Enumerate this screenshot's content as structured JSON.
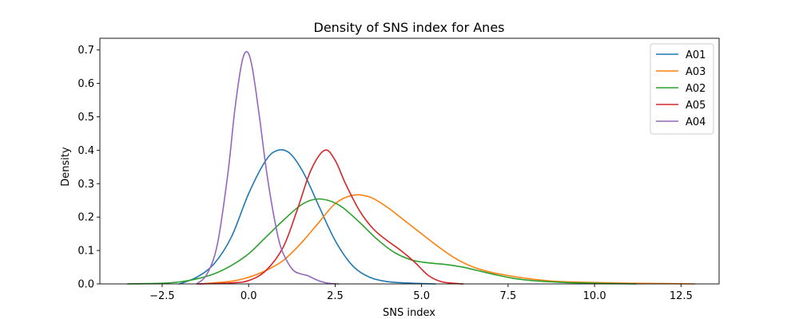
{
  "chart_data": {
    "type": "line",
    "title": "Density of SNS index for Anes",
    "xlabel": "SNS index",
    "ylabel": "Density",
    "xlim": [
      -4.3,
      13.6
    ],
    "ylim": [
      0,
      0.735
    ],
    "xticks": [
      -2.5,
      0.0,
      2.5,
      5.0,
      7.5,
      10.0,
      12.5
    ],
    "xtick_labels": [
      "−2.5",
      "0.0",
      "2.5",
      "5.0",
      "7.5",
      "10.0",
      "12.5"
    ],
    "yticks": [
      0.0,
      0.1,
      0.2,
      0.3,
      0.4,
      0.5,
      0.6,
      0.7
    ],
    "ytick_labels": [
      "0.0",
      "0.1",
      "0.2",
      "0.3",
      "0.4",
      "0.5",
      "0.6",
      "0.7"
    ],
    "grid": false,
    "legend_position": "top-right",
    "series": [
      {
        "name": "A01",
        "color": "#1f77b4",
        "x": [
          -2.0,
          -1.5,
          -1.0,
          -0.5,
          0.0,
          0.5,
          0.85,
          1.2,
          1.6,
          2.0,
          2.5,
          3.0,
          3.5,
          4.0,
          4.5,
          5.0,
          5.4
        ],
        "y": [
          0.0,
          0.02,
          0.06,
          0.14,
          0.27,
          0.37,
          0.4,
          0.39,
          0.33,
          0.24,
          0.13,
          0.055,
          0.02,
          0.007,
          0.003,
          0.001,
          0.0
        ]
      },
      {
        "name": "A03",
        "color": "#ff7f0e",
        "x": [
          -1.4,
          -0.5,
          0.0,
          0.5,
          1.0,
          1.5,
          2.0,
          2.5,
          3.0,
          3.5,
          4.0,
          4.5,
          5.0,
          5.5,
          6.0,
          6.5,
          7.0,
          7.5,
          8.0,
          8.5,
          9.0,
          10.0,
          11.0,
          12.0,
          12.9
        ],
        "y": [
          0.0,
          0.008,
          0.02,
          0.04,
          0.07,
          0.12,
          0.18,
          0.24,
          0.265,
          0.26,
          0.23,
          0.19,
          0.15,
          0.11,
          0.075,
          0.05,
          0.035,
          0.025,
          0.017,
          0.011,
          0.007,
          0.004,
          0.002,
          0.001,
          0.0
        ]
      },
      {
        "name": "A02",
        "color": "#2ca02c",
        "x": [
          -3.5,
          -2.5,
          -2.0,
          -1.5,
          -1.0,
          -0.5,
          0.0,
          0.5,
          1.0,
          1.5,
          1.9,
          2.3,
          2.7,
          3.2,
          3.7,
          4.2,
          4.7,
          5.2,
          5.7,
          6.2,
          6.7,
          7.2,
          7.7,
          8.2,
          9.0,
          10.0,
          11.2
        ],
        "y": [
          0.0,
          0.002,
          0.006,
          0.015,
          0.03,
          0.055,
          0.09,
          0.14,
          0.19,
          0.235,
          0.253,
          0.25,
          0.23,
          0.185,
          0.135,
          0.095,
          0.072,
          0.063,
          0.058,
          0.05,
          0.038,
          0.026,
          0.016,
          0.01,
          0.005,
          0.002,
          0.0
        ]
      },
      {
        "name": "A05",
        "color": "#d62728",
        "x": [
          -1.5,
          -0.5,
          0.0,
          0.5,
          1.0,
          1.4,
          1.8,
          2.2,
          2.5,
          2.8,
          3.2,
          3.6,
          4.0,
          4.4,
          4.8,
          5.2,
          5.6,
          6.2
        ],
        "y": [
          0.0,
          0.003,
          0.01,
          0.04,
          0.11,
          0.22,
          0.34,
          0.4,
          0.37,
          0.3,
          0.22,
          0.165,
          0.13,
          0.1,
          0.065,
          0.025,
          0.006,
          0.0
        ]
      },
      {
        "name": "A04",
        "color": "#9467bd",
        "x": [
          -1.5,
          -1.2,
          -0.9,
          -0.6,
          -0.4,
          -0.2,
          -0.05,
          0.1,
          0.3,
          0.5,
          0.7,
          0.9,
          1.1,
          1.3,
          1.5,
          1.7,
          1.9,
          2.1,
          2.3,
          2.6
        ],
        "y": [
          0.0,
          0.03,
          0.12,
          0.33,
          0.52,
          0.66,
          0.695,
          0.65,
          0.51,
          0.35,
          0.22,
          0.12,
          0.07,
          0.04,
          0.03,
          0.025,
          0.015,
          0.007,
          0.002,
          0.0
        ]
      }
    ]
  }
}
